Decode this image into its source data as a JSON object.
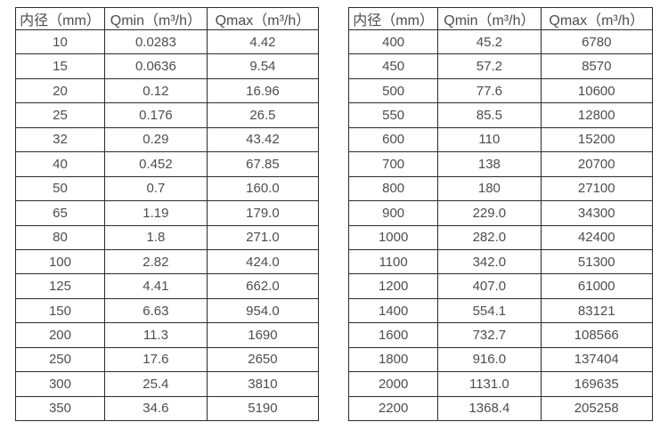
{
  "colors": {
    "text": "#4d4d4d",
    "border": "#2b2b2b",
    "background": "#ffffff"
  },
  "tables": [
    {
      "name": "flow-table-small-diameters",
      "headers": [
        "内径（mm）",
        "Qmin（m³/h）",
        "Qmax（m³/h）"
      ],
      "rows": [
        [
          "10",
          "0.0283",
          "4.42"
        ],
        [
          "15",
          "0.0636",
          "9.54"
        ],
        [
          "20",
          "0.12",
          "16.96"
        ],
        [
          "25",
          "0.176",
          "26.5"
        ],
        [
          "32",
          "0.29",
          "43.42"
        ],
        [
          "40",
          "0.452",
          "67.85"
        ],
        [
          "50",
          "0.7",
          "160.0"
        ],
        [
          "65",
          "1.19",
          "179.0"
        ],
        [
          "80",
          "1.8",
          "271.0"
        ],
        [
          "100",
          "2.82",
          "424.0"
        ],
        [
          "125",
          "4.41",
          "662.0"
        ],
        [
          "150",
          "6.63",
          "954.0"
        ],
        [
          "200",
          "11.3",
          "1690"
        ],
        [
          "250",
          "17.6",
          "2650"
        ],
        [
          "300",
          "25.4",
          "3810"
        ],
        [
          "350",
          "34.6",
          "5190"
        ]
      ]
    },
    {
      "name": "flow-table-large-diameters",
      "headers": [
        "内径（mm）",
        "Qmin（m³/h）",
        "Qmax（m³/h）"
      ],
      "rows": [
        [
          "400",
          "45.2",
          "6780"
        ],
        [
          "450",
          "57.2",
          "8570"
        ],
        [
          "500",
          "77.6",
          "10600"
        ],
        [
          "550",
          "85.5",
          "12800"
        ],
        [
          "600",
          "110",
          "15200"
        ],
        [
          "700",
          "138",
          "20700"
        ],
        [
          "800",
          "180",
          "27100"
        ],
        [
          "900",
          "229.0",
          "34300"
        ],
        [
          "1000",
          "282.0",
          "42400"
        ],
        [
          "1100",
          "342.0",
          "51300"
        ],
        [
          "1200",
          "407.0",
          "61000"
        ],
        [
          "1400",
          "554.1",
          "83121"
        ],
        [
          "1600",
          "732.7",
          "108566"
        ],
        [
          "1800",
          "916.0",
          "137404"
        ],
        [
          "2000",
          "1131.0",
          "169635"
        ],
        [
          "2200",
          "1368.4",
          "205258"
        ]
      ]
    }
  ]
}
